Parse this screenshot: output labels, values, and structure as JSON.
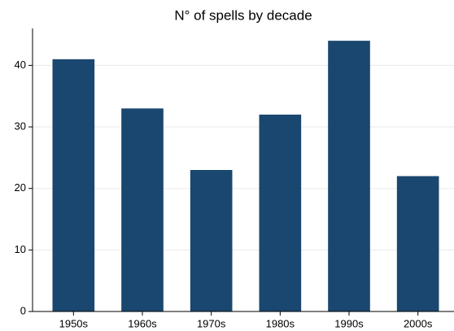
{
  "chart_data": {
    "type": "bar",
    "title": "N° of spells by decade",
    "categories": [
      "1950s",
      "1960s",
      "1970s",
      "1980s",
      "1990s",
      "2000s"
    ],
    "values": [
      41,
      33,
      23,
      32,
      44,
      22
    ],
    "color": "#1a476f",
    "ylim": [
      0,
      46
    ],
    "yticks": [
      0,
      10,
      20,
      30,
      40
    ],
    "grid": true
  }
}
